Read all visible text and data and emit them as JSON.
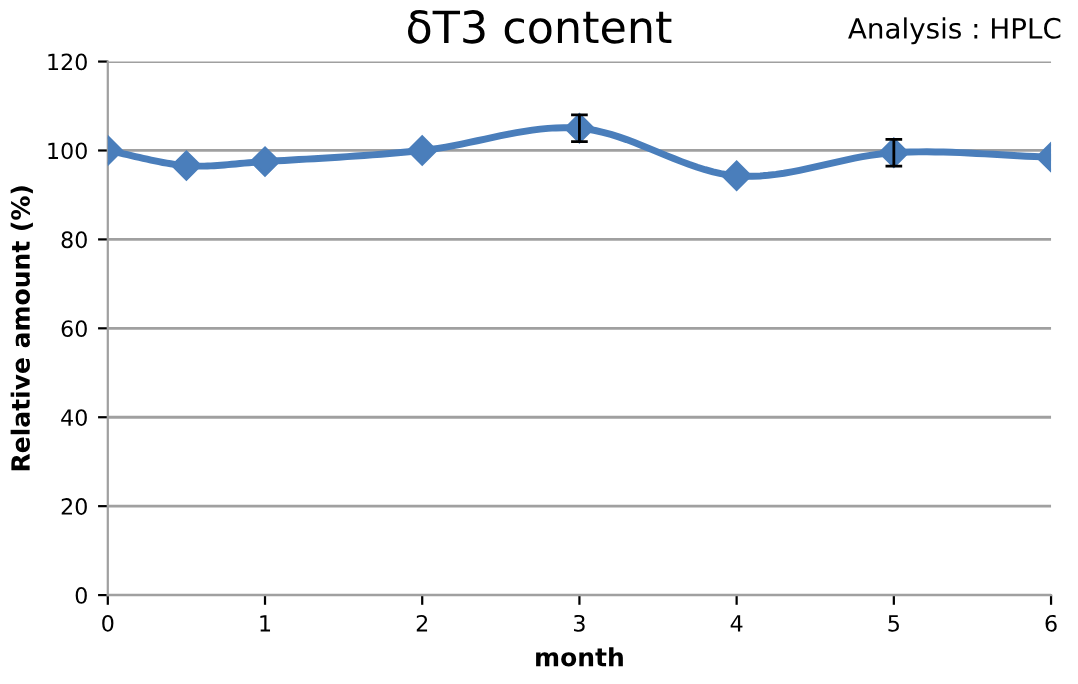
{
  "chart_data": {
    "type": "line",
    "title": "δT3 content",
    "xlabel": "month",
    "ylabel": "Relative amount (%)",
    "annotations": [
      "Analysis : HPLC"
    ],
    "x": [
      0,
      0.5,
      1,
      2,
      3,
      4,
      5,
      6
    ],
    "series": [
      {
        "color": "#4a7ebb",
        "values": [
          100,
          96.6,
          97.5,
          100,
          105,
          94.3,
          99.5,
          98.5
        ],
        "errors": [
          null,
          null,
          null,
          null,
          3,
          null,
          3,
          null
        ]
      }
    ],
    "xlim": [
      0,
      6
    ],
    "xticks": [
      0,
      1,
      2,
      3,
      4,
      5,
      6
    ],
    "ylim": [
      0,
      120
    ],
    "yticks": [
      0,
      20,
      40,
      60,
      80,
      100,
      120
    ],
    "grid": "y",
    "marker": "diamond",
    "line_style": "solid"
  }
}
